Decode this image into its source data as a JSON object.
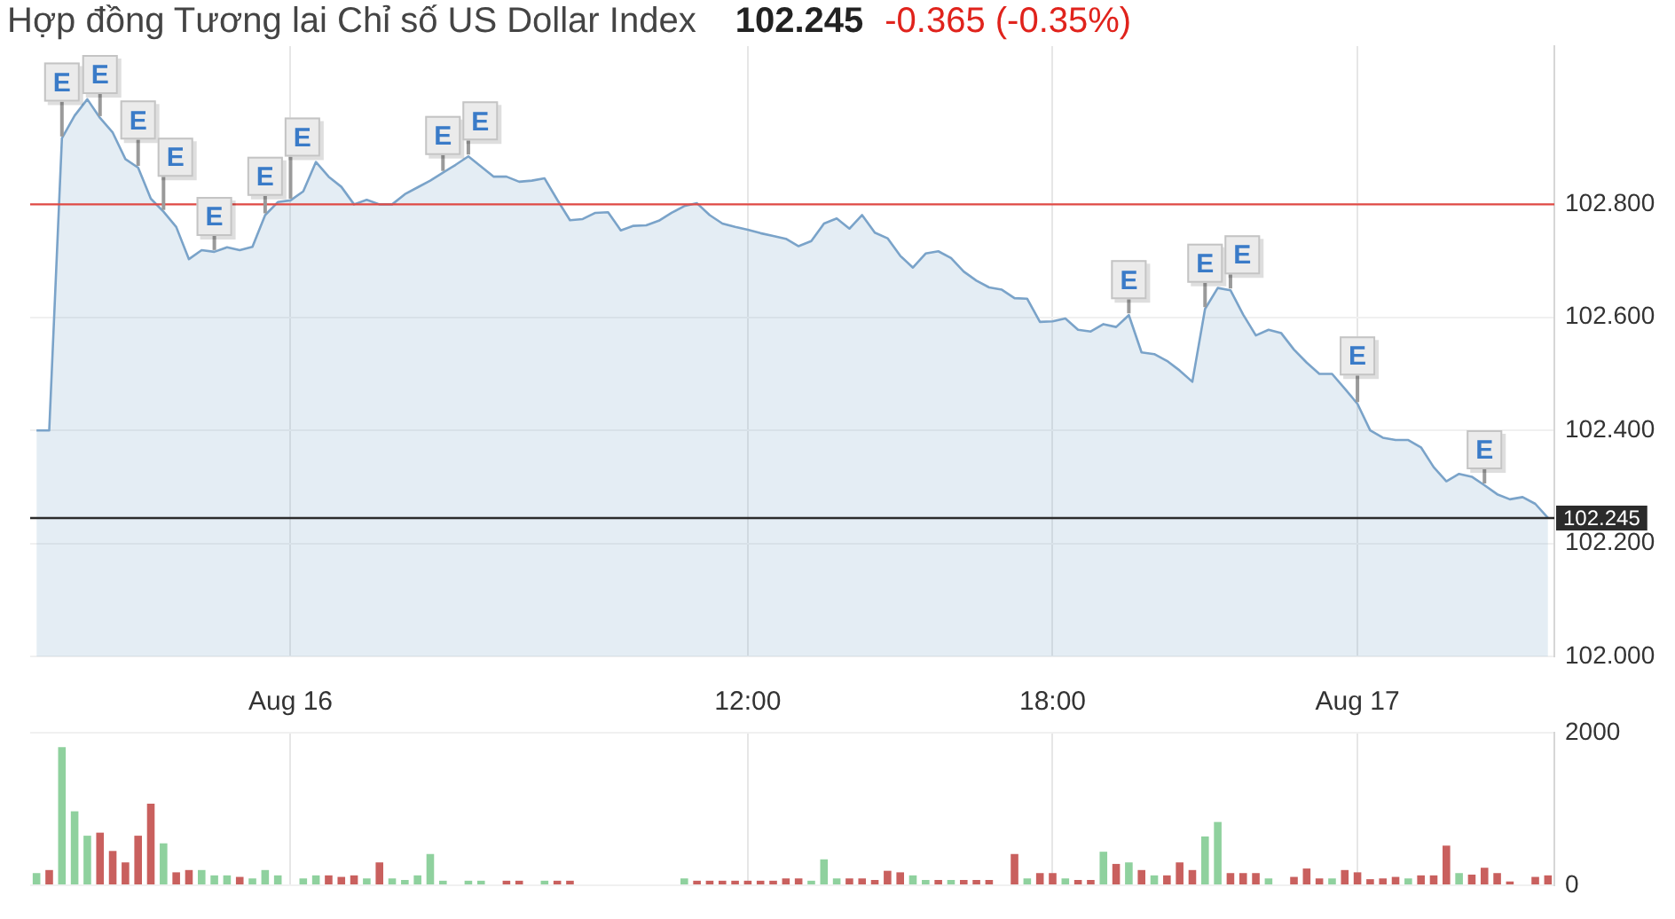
{
  "chart_data": [
    {
      "type": "area",
      "title": "Hợp đồng Tương lai Chỉ số US Dollar Index",
      "subtitle": "102.245",
      "annotations": [
        "-0.365 (-0.35%)"
      ],
      "categories": [
        null,
        null,
        null,
        null,
        null,
        null,
        null,
        null,
        null,
        null,
        null,
        null,
        null,
        null,
        null,
        null,
        null,
        null,
        null,
        null,
        "Aug 16",
        null,
        null,
        null,
        null,
        null,
        null,
        null,
        null,
        null,
        null,
        null,
        null,
        null,
        null,
        null,
        null,
        null,
        null,
        null,
        null,
        null,
        null,
        null,
        null,
        null,
        null,
        null,
        null,
        null,
        null,
        null,
        null,
        null,
        null,
        null,
        "12:00",
        null,
        null,
        null,
        null,
        null,
        null,
        null,
        null,
        null,
        null,
        null,
        null,
        null,
        null,
        null,
        null,
        null,
        null,
        null,
        null,
        null,
        null,
        null,
        "18:00",
        null,
        null,
        null,
        null,
        null,
        null,
        null,
        null,
        null,
        null,
        null,
        null,
        null,
        null,
        null,
        null,
        null,
        null,
        null,
        null,
        null,
        null,
        null,
        "Aug 17",
        null,
        null,
        null,
        null,
        null,
        null,
        null,
        null,
        null,
        null,
        null,
        null,
        null,
        null,
        null
      ],
      "color": "#7aa3c9",
      "values": [
        102.4,
        102.4,
        102.917,
        102.957,
        102.986,
        102.953,
        102.927,
        102.88,
        102.865,
        102.81,
        102.787,
        102.76,
        102.703,
        102.719,
        102.716,
        102.724,
        102.719,
        102.725,
        102.781,
        102.804,
        102.807,
        102.823,
        102.875,
        102.849,
        102.831,
        102.8,
        102.808,
        102.8,
        102.8,
        102.818,
        102.83,
        102.842,
        102.856,
        102.87,
        102.885,
        102.867,
        102.849,
        102.849,
        102.84,
        102.842,
        102.846,
        102.808,
        102.772,
        102.774,
        102.785,
        102.786,
        102.754,
        102.762,
        102.763,
        102.771,
        102.785,
        102.797,
        102.802,
        102.781,
        102.766,
        102.76,
        102.755,
        102.749,
        102.744,
        102.739,
        102.726,
        102.735,
        102.766,
        102.775,
        102.757,
        102.781,
        102.75,
        102.74,
        102.709,
        102.688,
        102.713,
        102.717,
        102.705,
        102.681,
        102.665,
        102.653,
        102.649,
        102.634,
        102.633,
        102.592,
        102.593,
        102.598,
        102.578,
        102.575,
        102.588,
        102.583,
        102.604,
        102.538,
        102.535,
        102.523,
        102.506,
        102.486,
        102.615,
        102.652,
        102.648,
        102.605,
        102.568,
        102.578,
        102.572,
        102.543,
        102.52,
        102.5,
        102.5,
        102.474,
        102.447,
        102.4,
        102.387,
        102.383,
        102.383,
        102.37,
        102.335,
        102.31,
        102.323,
        102.318,
        102.303,
        102.287,
        102.278,
        102.282,
        102.27,
        102.245
      ],
      "value_labels": [
        null,
        null,
        "E",
        null,
        null,
        "E",
        null,
        null,
        "E",
        null,
        "E",
        null,
        null,
        null,
        "E",
        null,
        null,
        null,
        "E",
        null,
        "E",
        null,
        null,
        null,
        null,
        null,
        null,
        null,
        null,
        null,
        null,
        null,
        "E",
        null,
        "E",
        null,
        null,
        null,
        null,
        null,
        null,
        null,
        null,
        null,
        null,
        null,
        null,
        null,
        null,
        null,
        null,
        null,
        null,
        null,
        null,
        null,
        null,
        null,
        null,
        null,
        null,
        null,
        null,
        null,
        null,
        null,
        null,
        null,
        null,
        null,
        null,
        null,
        null,
        null,
        null,
        null,
        null,
        null,
        null,
        null,
        null,
        null,
        null,
        null,
        null,
        null,
        "E",
        null,
        null,
        null,
        null,
        null,
        "E",
        null,
        "E",
        null,
        null,
        null,
        null,
        null,
        null,
        null,
        null,
        null,
        "E",
        null,
        null,
        null,
        null,
        null,
        null,
        null,
        null,
        null,
        "E",
        null,
        null,
        null,
        null,
        null
      ],
      "marker": "none",
      "ylim": [
        102.0,
        103.08
      ],
      "yticks": [
        {
          "value": 102.0,
          "label": "102.000"
        },
        {
          "value": 102.2,
          "label": "102.200"
        },
        {
          "value": 102.4,
          "label": "102.400"
        },
        {
          "value": 102.6,
          "label": "102.600"
        },
        {
          "value": 102.8,
          "label": "102.800"
        }
      ],
      "ref_lines": [
        {
          "axis": "y",
          "value": 102.8,
          "color": "#e04a45"
        },
        {
          "axis": "y",
          "value": 102.245,
          "label": "102.245",
          "color": "#2b2b2b"
        }
      ],
      "grid": true
    },
    {
      "type": "bar",
      "categories": [
        null,
        null,
        null,
        null,
        null,
        null,
        null,
        null,
        null,
        null,
        null,
        null,
        null,
        null,
        null,
        null,
        null,
        null,
        null,
        null,
        null,
        null,
        null,
        null,
        null,
        null,
        null,
        null,
        null,
        null,
        null,
        null,
        null,
        null,
        null,
        null,
        null,
        null,
        null,
        null,
        null,
        null,
        null,
        null,
        null,
        null,
        null,
        null,
        null,
        null,
        null,
        null,
        null,
        null,
        null,
        null,
        null,
        null,
        null,
        null,
        null,
        null,
        null,
        null,
        null,
        null,
        null,
        null,
        null,
        null,
        null,
        null,
        null,
        null,
        null,
        null,
        null,
        null,
        null,
        null,
        null,
        null,
        null,
        null,
        null,
        null,
        null,
        null,
        null,
        null,
        null,
        null,
        null,
        null,
        null,
        null,
        null,
        null,
        null,
        null,
        null,
        null,
        null,
        null,
        null,
        null,
        null,
        null,
        null,
        null,
        null,
        null,
        null,
        null,
        null,
        null,
        null,
        null,
        null,
        null
      ],
      "values": [
        160,
        200,
        1810,
        970,
        650,
        690,
        450,
        300,
        650,
        1070,
        550,
        170,
        200,
        200,
        130,
        130,
        110,
        90,
        200,
        130,
        null,
        90,
        130,
        130,
        110,
        130,
        90,
        300,
        90,
        70,
        130,
        410,
        60,
        null,
        60,
        60,
        null,
        60,
        60,
        null,
        60,
        60,
        60,
        null,
        null,
        null,
        null,
        null,
        null,
        null,
        null,
        90,
        60,
        60,
        60,
        60,
        60,
        60,
        60,
        90,
        90,
        60,
        340,
        90,
        90,
        90,
        70,
        190,
        170,
        130,
        70,
        70,
        70,
        70,
        70,
        70,
        null,
        410,
        90,
        160,
        160,
        90,
        70,
        70,
        440,
        280,
        300,
        200,
        130,
        130,
        300,
        200,
        640,
        830,
        160,
        160,
        160,
        90,
        null,
        110,
        220,
        90,
        90,
        200,
        170,
        80,
        90,
        110,
        90,
        130,
        130,
        520,
        160,
        140,
        230,
        160,
        50,
        null,
        110,
        130
      ],
      "colors": [
        "#8fd19e",
        "#c9605e",
        "#8fd19e",
        "#8fd19e",
        "#8fd19e",
        "#c9605e",
        "#c9605e",
        "#c9605e",
        "#c9605e",
        "#c9605e",
        "#8fd19e",
        "#c9605e",
        "#c9605e",
        "#8fd19e",
        "#8fd19e",
        "#8fd19e",
        "#c9605e",
        "#8fd19e",
        "#8fd19e",
        "#8fd19e",
        null,
        "#8fd19e",
        "#8fd19e",
        "#c9605e",
        "#c9605e",
        "#c9605e",
        "#8fd19e",
        "#c9605e",
        "#8fd19e",
        "#8fd19e",
        "#8fd19e",
        "#8fd19e",
        "#8fd19e",
        null,
        "#8fd19e",
        "#8fd19e",
        null,
        "#c9605e",
        "#c9605e",
        null,
        "#8fd19e",
        "#c9605e",
        "#c9605e",
        null,
        null,
        null,
        null,
        null,
        null,
        null,
        null,
        "#8fd19e",
        "#c9605e",
        "#c9605e",
        "#c9605e",
        "#c9605e",
        "#c9605e",
        "#c9605e",
        "#c9605e",
        "#c9605e",
        "#c9605e",
        "#8fd19e",
        "#8fd19e",
        "#8fd19e",
        "#c9605e",
        "#c9605e",
        "#c9605e",
        "#c9605e",
        "#c9605e",
        "#8fd19e",
        "#8fd19e",
        "#c9605e",
        "#8fd19e",
        "#c9605e",
        "#c9605e",
        "#c9605e",
        null,
        "#c9605e",
        "#8fd19e",
        "#c9605e",
        "#c9605e",
        "#8fd19e",
        "#c9605e",
        "#c9605e",
        "#8fd19e",
        "#c9605e",
        "#8fd19e",
        "#c9605e",
        "#8fd19e",
        "#c9605e",
        "#c9605e",
        "#c9605e",
        "#8fd19e",
        "#8fd19e",
        "#c9605e",
        "#c9605e",
        "#c9605e",
        "#8fd19e",
        null,
        "#c9605e",
        "#c9605e",
        "#c9605e",
        "#8fd19e",
        "#c9605e",
        "#c9605e",
        "#c9605e",
        "#c9605e",
        "#c9605e",
        "#8fd19e",
        "#c9605e",
        "#c9605e",
        "#c9605e",
        "#8fd19e",
        "#c9605e",
        "#c9605e",
        "#c9605e",
        "#c9605e",
        null,
        "#c9605e",
        "#c9605e"
      ],
      "ylim": [
        0,
        2000
      ],
      "yticks": [
        0,
        2000
      ],
      "grid": true
    }
  ]
}
